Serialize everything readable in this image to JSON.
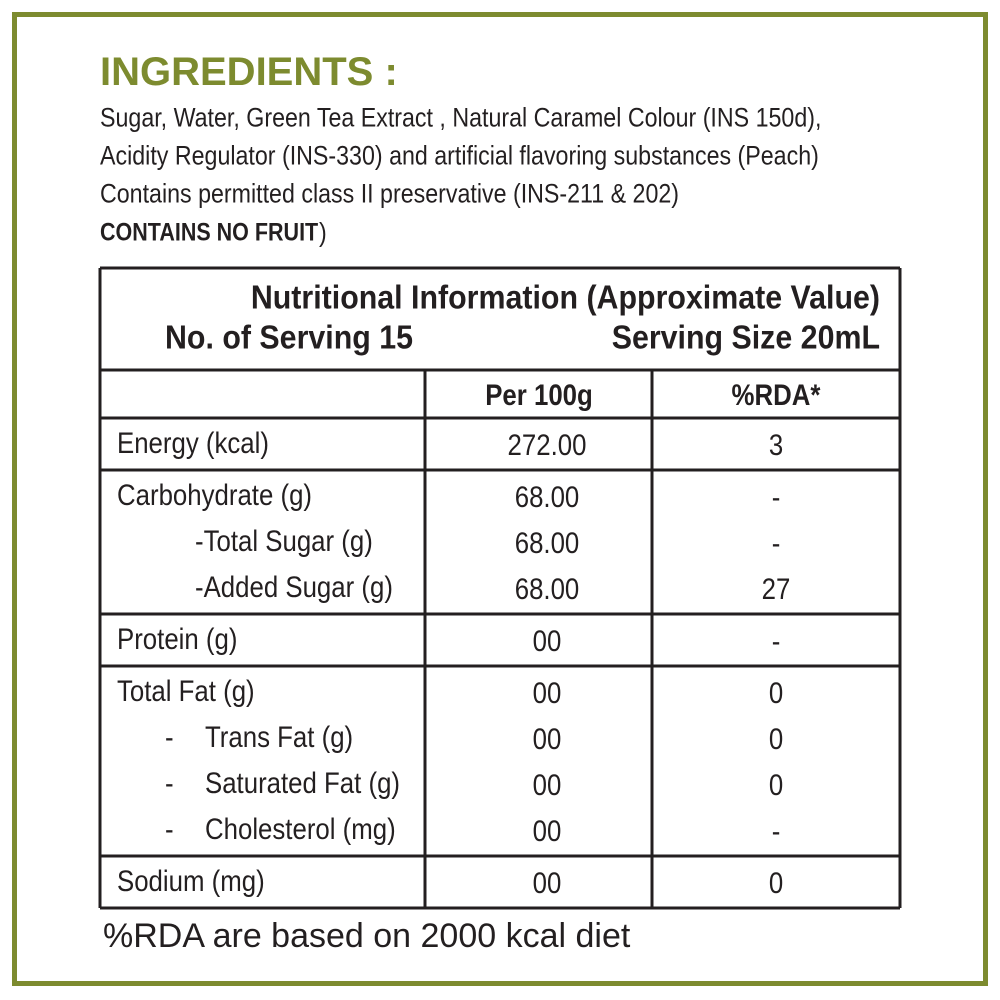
{
  "ingredients": {
    "title": "INGREDIENTS :",
    "lines": [
      "Sugar, Water, Green Tea Extract , Natural Caramel Colour (INS 150d),",
      "Acidity Regulator (INS-330) and artificial flavoring substances (Peach)",
      "Contains permitted class II preservative (INS-211 & 202)"
    ],
    "note_bold": "CONTAINS NO FRUIT",
    "note_end": ")"
  },
  "nutrition": {
    "title": "Nutritional Information (Approximate Value)",
    "servings": "No. of Serving 15",
    "serving_size": "Serving Size 20mL",
    "columns": [
      "Per 100g",
      "%RDA*"
    ],
    "groups": [
      [
        {
          "label": "Energy (kcal)",
          "per_100g": "272.00",
          "rda": "3"
        }
      ],
      [
        {
          "label": "Carbohydrate (g)",
          "per_100g": "68.00",
          "rda": "-"
        },
        {
          "label": "-Total Sugar (g)",
          "per_100g": "68.00",
          "rda": "-"
        },
        {
          "label": "-Added Sugar (g)",
          "per_100g": "68.00",
          "rda": "27"
        }
      ],
      [
        {
          "label": "Protein (g)",
          "per_100g": "00",
          "rda": "-"
        }
      ],
      [
        {
          "label": "Total Fat (g)",
          "per_100g": "00",
          "rda": "0"
        },
        {
          "bullet": "-",
          "label": "Trans Fat (g)",
          "per_100g": "00",
          "rda": "0"
        },
        {
          "bullet": "-",
          "label": "Saturated Fat (g)",
          "per_100g": "00",
          "rda": "0"
        },
        {
          "bullet": "-",
          "label": "Cholesterol (mg)",
          "per_100g": "00",
          "rda": "-"
        }
      ],
      [
        {
          "label": "Sodium (mg)",
          "per_100g": "00",
          "rda": "0"
        }
      ]
    ]
  },
  "footnote": "%RDA are based on 2000 kcal diet"
}
